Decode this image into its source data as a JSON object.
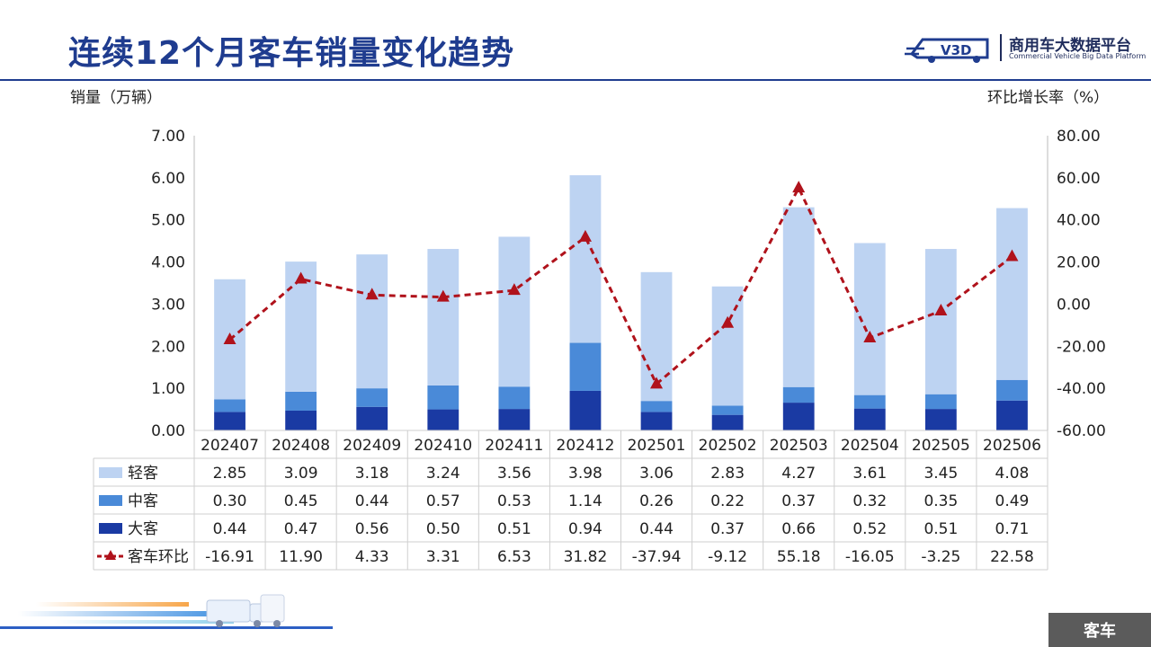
{
  "page": {
    "title": "连续12个月客车销量变化趋势",
    "logo_text": "商用车大数据平台",
    "logo_sub": "Commercial Vehicle Big Data Platform",
    "footer_tab": "客车"
  },
  "chart_data": {
    "type": "bar",
    "stacked": true,
    "categories": [
      "202407",
      "202408",
      "202409",
      "202410",
      "202411",
      "202412",
      "202501",
      "202502",
      "202503",
      "202504",
      "202505",
      "202506"
    ],
    "ylabel": "销量（万辆）",
    "y2label": "环比增长率（%）",
    "ylim": [
      0,
      7
    ],
    "y2lim": [
      -60,
      80
    ],
    "yticks": [
      "0.00",
      "1.00",
      "2.00",
      "3.00",
      "4.00",
      "5.00",
      "6.00",
      "7.00"
    ],
    "y2ticks": [
      "-60.00",
      "-40.00",
      "-20.00",
      "0.00",
      "20.00",
      "40.00",
      "60.00",
      "80.00"
    ],
    "series": [
      {
        "name": "轻客",
        "color": "#bdd3f2",
        "values": [
          2.85,
          3.09,
          3.18,
          3.24,
          3.56,
          3.98,
          3.06,
          2.83,
          4.27,
          3.61,
          3.45,
          4.08
        ],
        "labels": [
          "2.85",
          "3.09",
          "3.18",
          "3.24",
          "3.56",
          "3.98",
          "3.06",
          "2.83",
          "4.27",
          "3.61",
          "3.45",
          "4.08"
        ]
      },
      {
        "name": "中客",
        "color": "#4a8ad8",
        "values": [
          0.3,
          0.45,
          0.44,
          0.57,
          0.53,
          1.14,
          0.26,
          0.22,
          0.37,
          0.32,
          0.35,
          0.49
        ],
        "labels": [
          "0.30",
          "0.45",
          "0.44",
          "0.57",
          "0.53",
          "1.14",
          "0.26",
          "0.22",
          "0.37",
          "0.32",
          "0.35",
          "0.49"
        ]
      },
      {
        "name": "大客",
        "color": "#1a3aa3",
        "values": [
          0.44,
          0.47,
          0.56,
          0.5,
          0.51,
          0.94,
          0.44,
          0.37,
          0.66,
          0.52,
          0.51,
          0.71
        ],
        "labels": [
          "0.44",
          "0.47",
          "0.56",
          "0.50",
          "0.51",
          "0.94",
          "0.44",
          "0.37",
          "0.66",
          "0.52",
          "0.51",
          "0.71"
        ]
      }
    ],
    "line_series": {
      "name": "客车环比",
      "color": "#b0121b",
      "axis": "right",
      "values": [
        -16.91,
        11.9,
        4.33,
        3.31,
        6.53,
        31.82,
        -37.94,
        -9.12,
        55.18,
        -16.05,
        -3.25,
        22.58
      ],
      "labels": [
        "-16.91",
        "11.90",
        "4.33",
        "3.31",
        "6.53",
        "31.82",
        "-37.94",
        "-9.12",
        "55.18",
        "-16.05",
        "-3.25",
        "22.58"
      ]
    },
    "legend": "data-table"
  }
}
